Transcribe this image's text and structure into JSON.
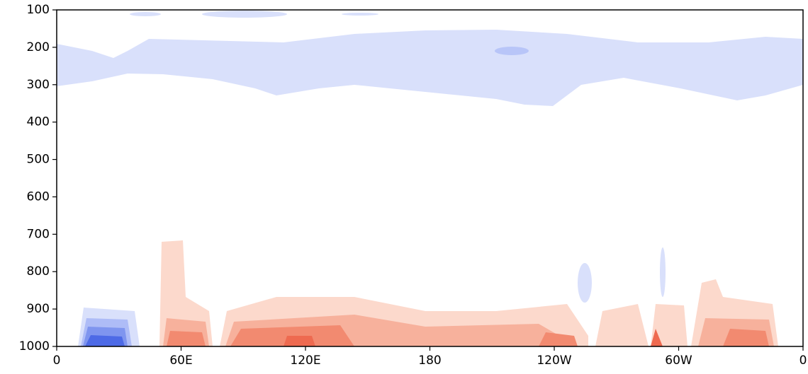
{
  "chart_data": {
    "type": "contour",
    "xlim": [
      0,
      360
    ],
    "xticks": [
      0,
      {
        "value": 60,
        "label": "60E"
      },
      {
        "value": 120,
        "label": "120E"
      },
      180,
      {
        "value": 240,
        "label": "120W"
      },
      {
        "value": 300,
        "label": "60W"
      },
      {
        "value": 360,
        "label": "0"
      }
    ],
    "ylim": [
      1000,
      100
    ],
    "yticks": [
      100,
      200,
      300,
      400,
      500,
      600,
      700,
      800,
      900,
      1000
    ]
  }
}
